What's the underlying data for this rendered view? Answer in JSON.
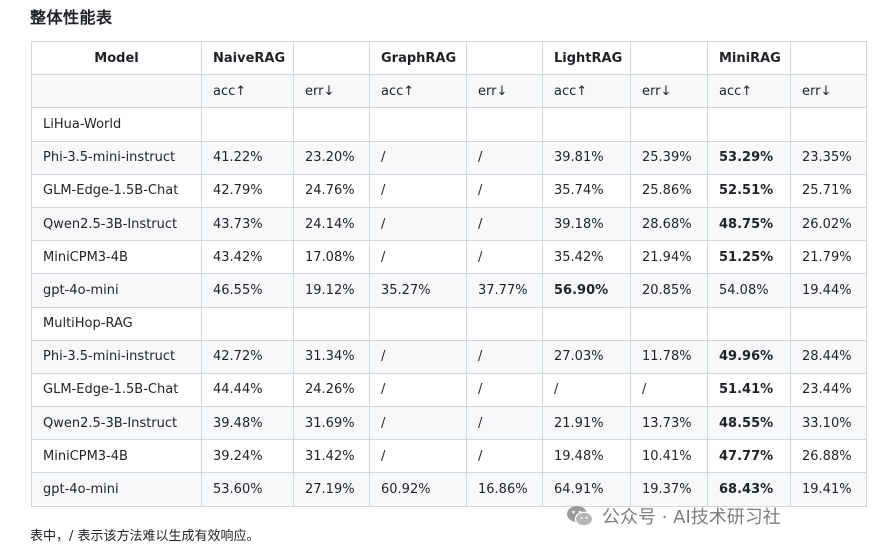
{
  "title": "整体性能表",
  "table": {
    "header1": [
      "Model",
      "NaiveRAG",
      "",
      "GraphRAG",
      "",
      "LightRAG",
      "",
      "MiniRAG",
      ""
    ],
    "header2": [
      "",
      "acc↑",
      "err↓",
      "acc↑",
      "err↓",
      "acc↑",
      "err↓",
      "acc↑",
      "err↓"
    ],
    "sections": [
      {
        "name": "LiHua-World",
        "rows": [
          {
            "cells": [
              "Phi-3.5-mini-instruct",
              "41.22%",
              "23.20%",
              "/",
              "/",
              "39.81%",
              "25.39%",
              "53.29%",
              "23.35%"
            ],
            "bold": [
              7
            ]
          },
          {
            "cells": [
              "GLM-Edge-1.5B-Chat",
              "42.79%",
              "24.76%",
              "/",
              "/",
              "35.74%",
              "25.86%",
              "52.51%",
              "25.71%"
            ],
            "bold": [
              7
            ]
          },
          {
            "cells": [
              "Qwen2.5-3B-Instruct",
              "43.73%",
              "24.14%",
              "/",
              "/",
              "39.18%",
              "28.68%",
              "48.75%",
              "26.02%"
            ],
            "bold": [
              7
            ]
          },
          {
            "cells": [
              "MiniCPM3-4B",
              "43.42%",
              "17.08%",
              "/",
              "/",
              "35.42%",
              "21.94%",
              "51.25%",
              "21.79%"
            ],
            "bold": [
              7
            ]
          },
          {
            "cells": [
              "gpt-4o-mini",
              "46.55%",
              "19.12%",
              "35.27%",
              "37.77%",
              "56.90%",
              "20.85%",
              "54.08%",
              "19.44%"
            ],
            "bold": [
              5
            ]
          }
        ]
      },
      {
        "name": "MultiHop-RAG",
        "rows": [
          {
            "cells": [
              "Phi-3.5-mini-instruct",
              "42.72%",
              "31.34%",
              "/",
              "/",
              "27.03%",
              "11.78%",
              "49.96%",
              "28.44%"
            ],
            "bold": [
              7
            ]
          },
          {
            "cells": [
              "GLM-Edge-1.5B-Chat",
              "44.44%",
              "24.26%",
              "/",
              "/",
              "/",
              "/",
              "51.41%",
              "23.44%"
            ],
            "bold": [
              7
            ]
          },
          {
            "cells": [
              "Qwen2.5-3B-Instruct",
              "39.48%",
              "31.69%",
              "/",
              "/",
              "21.91%",
              "13.73%",
              "48.55%",
              "33.10%"
            ],
            "bold": [
              7
            ]
          },
          {
            "cells": [
              "MiniCPM3-4B",
              "39.24%",
              "31.42%",
              "/",
              "/",
              "19.48%",
              "10.41%",
              "47.77%",
              "26.88%"
            ],
            "bold": [
              7
            ]
          },
          {
            "cells": [
              "gpt-4o-mini",
              "53.60%",
              "27.19%",
              "60.92%",
              "16.86%",
              "64.91%",
              "19.37%",
              "68.43%",
              "19.41%"
            ],
            "bold": [
              7
            ]
          }
        ]
      }
    ]
  },
  "footnote": "表中，/ 表示该方法难以生成有效响应。",
  "watermark": {
    "text": "公众号 · AI技术研习社",
    "icon": "wechat-icon",
    "color": "#7d7d7d"
  }
}
